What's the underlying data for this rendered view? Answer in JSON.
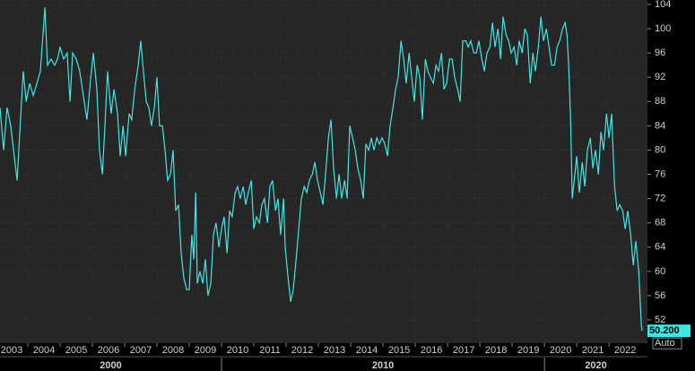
{
  "chart_data": {
    "type": "line",
    "x": [
      2003.14,
      2003.25,
      2003.36,
      2003.47,
      2003.67,
      2003.86,
      2003.95,
      2004.06,
      2004.17,
      2004.28,
      2004.39,
      2004.53,
      2004.61,
      2004.72,
      2004.83,
      2004.92,
      2005.0,
      2005.11,
      2005.22,
      2005.31,
      2005.39,
      2005.5,
      2005.61,
      2005.72,
      2005.83,
      2005.95,
      2006.03,
      2006.14,
      2006.22,
      2006.31,
      2006.39,
      2006.47,
      2006.58,
      2006.67,
      2006.78,
      2006.86,
      2006.95,
      2007.03,
      2007.14,
      2007.22,
      2007.31,
      2007.42,
      2007.5,
      2007.58,
      2007.67,
      2007.75,
      2007.83,
      2007.92,
      2008.0,
      2008.08,
      2008.17,
      2008.25,
      2008.33,
      2008.42,
      2008.5,
      2008.58,
      2008.67,
      2008.75,
      2008.83,
      2008.92,
      2009.0,
      2009.08,
      2009.14,
      2009.2,
      2009.25,
      2009.33,
      2009.42,
      2009.5,
      2009.58,
      2009.67,
      2009.75,
      2009.83,
      2009.92,
      2010.0,
      2010.08,
      2010.17,
      2010.25,
      2010.33,
      2010.42,
      2010.5,
      2010.58,
      2010.67,
      2010.75,
      2010.83,
      2010.92,
      2011.0,
      2011.08,
      2011.17,
      2011.25,
      2011.33,
      2011.42,
      2011.5,
      2011.58,
      2011.67,
      2011.75,
      2011.83,
      2011.92,
      2011.97,
      2012.06,
      2012.14,
      2012.22,
      2012.31,
      2012.39,
      2012.47,
      2012.56,
      2012.64,
      2012.72,
      2012.81,
      2012.89,
      2012.97,
      2013.06,
      2013.14,
      2013.22,
      2013.31,
      2013.39,
      2013.47,
      2013.56,
      2013.64,
      2013.72,
      2013.81,
      2013.89,
      2013.97,
      2014.06,
      2014.14,
      2014.22,
      2014.31,
      2014.39,
      2014.47,
      2014.56,
      2014.64,
      2014.72,
      2014.81,
      2014.89,
      2014.97,
      2015.06,
      2015.14,
      2015.22,
      2015.31,
      2015.39,
      2015.47,
      2015.56,
      2015.64,
      2015.72,
      2015.81,
      2015.89,
      2015.97,
      2016.06,
      2016.14,
      2016.22,
      2016.31,
      2016.39,
      2016.47,
      2016.56,
      2016.64,
      2016.72,
      2016.81,
      2016.89,
      2016.97,
      2017.06,
      2017.14,
      2017.22,
      2017.31,
      2017.39,
      2017.47,
      2017.56,
      2017.64,
      2017.72,
      2017.81,
      2017.89,
      2017.97,
      2018.06,
      2018.14,
      2018.22,
      2018.31,
      2018.39,
      2018.47,
      2018.56,
      2018.64,
      2018.72,
      2018.81,
      2018.89,
      2018.97,
      2019.06,
      2019.14,
      2019.22,
      2019.31,
      2019.39,
      2019.47,
      2019.56,
      2019.64,
      2019.72,
      2019.81,
      2019.89,
      2019.97,
      2020.06,
      2020.14,
      2020.22,
      2020.31,
      2020.39,
      2020.47,
      2020.56,
      2020.64,
      2020.7,
      2020.75,
      2020.81,
      2020.86,
      2020.92,
      2021.0,
      2021.08,
      2021.17,
      2021.25,
      2021.33,
      2021.42,
      2021.5,
      2021.58,
      2021.67,
      2021.75,
      2021.83,
      2021.92,
      2022.0,
      2022.08,
      2022.17,
      2022.25,
      2022.33,
      2022.42,
      2022.5,
      2022.58,
      2022.67,
      2022.75,
      2022.83,
      2022.92,
      2023.0,
      2023.03
    ],
    "values": [
      87,
      80,
      87,
      84,
      75,
      93,
      88,
      91,
      89,
      91,
      93,
      103.5,
      94,
      95,
      94,
      95,
      97,
      95,
      96,
      88,
      96,
      95,
      93,
      89,
      85,
      92,
      96,
      90,
      80,
      76,
      84,
      93,
      86,
      90,
      86,
      79,
      84,
      79,
      86,
      85,
      90,
      94,
      98,
      93,
      88,
      87,
      84,
      87,
      92,
      84,
      84,
      80,
      75,
      76,
      80,
      70,
      71,
      63,
      59,
      57,
      57,
      66,
      62,
      73,
      58,
      60,
      58,
      62,
      56,
      58,
      66,
      68,
      64,
      67,
      69,
      63,
      70,
      69,
      73,
      74,
      72,
      74,
      71,
      73,
      75,
      67,
      69,
      68,
      71,
      72,
      68,
      74,
      75,
      70,
      72,
      66,
      72,
      64,
      59,
      55,
      57,
      62,
      67,
      72,
      74,
      73,
      75,
      76,
      78,
      75,
      73,
      71,
      76,
      82,
      85,
      77,
      72,
      76,
      72,
      75,
      72,
      84,
      82,
      80,
      77,
      75,
      72,
      81,
      80,
      82,
      80,
      82,
      81,
      82,
      81,
      79,
      84,
      87,
      90,
      92,
      98,
      95,
      91,
      96,
      92,
      88,
      94,
      92,
      85,
      95,
      93,
      92,
      91,
      94,
      93,
      96,
      90,
      91,
      95,
      95,
      92,
      90,
      88,
      98,
      98,
      97,
      98,
      96,
      96,
      98,
      95,
      93,
      96,
      97,
      101,
      97,
      100,
      95,
      102,
      99,
      98,
      96,
      97,
      94,
      98,
      96,
      100,
      99,
      91,
      96,
      93,
      97,
      102,
      98,
      100,
      97,
      94,
      94,
      97,
      98,
      100,
      101,
      99,
      94,
      85,
      72,
      75,
      79,
      73,
      78,
      74,
      80,
      82,
      77,
      80,
      76,
      83,
      80,
      86,
      82,
      86,
      74,
      70,
      71,
      70,
      67,
      70,
      66,
      61,
      65,
      60,
      51,
      50.2
    ],
    "color": "#3ee6e6",
    "xlim": [
      2003.14,
      2023.19
    ],
    "xticks": [
      2003,
      2004,
      2005,
      2006,
      2007,
      2008,
      2009,
      2010,
      2011,
      2012,
      2013,
      2014,
      2015,
      2016,
      2017,
      2018,
      2019,
      2020,
      2021,
      2022
    ],
    "xgroups": [
      2000,
      2010,
      2020
    ],
    "ylim": [
      48.16,
      104.74
    ],
    "yticks": [
      52,
      56,
      60,
      64,
      68,
      72,
      76,
      80,
      84,
      88,
      92,
      96,
      100,
      104
    ],
    "last_value": {
      "value": 50.2,
      "label": "50.200"
    },
    "scale_label": "Auto",
    "grid": true
  }
}
